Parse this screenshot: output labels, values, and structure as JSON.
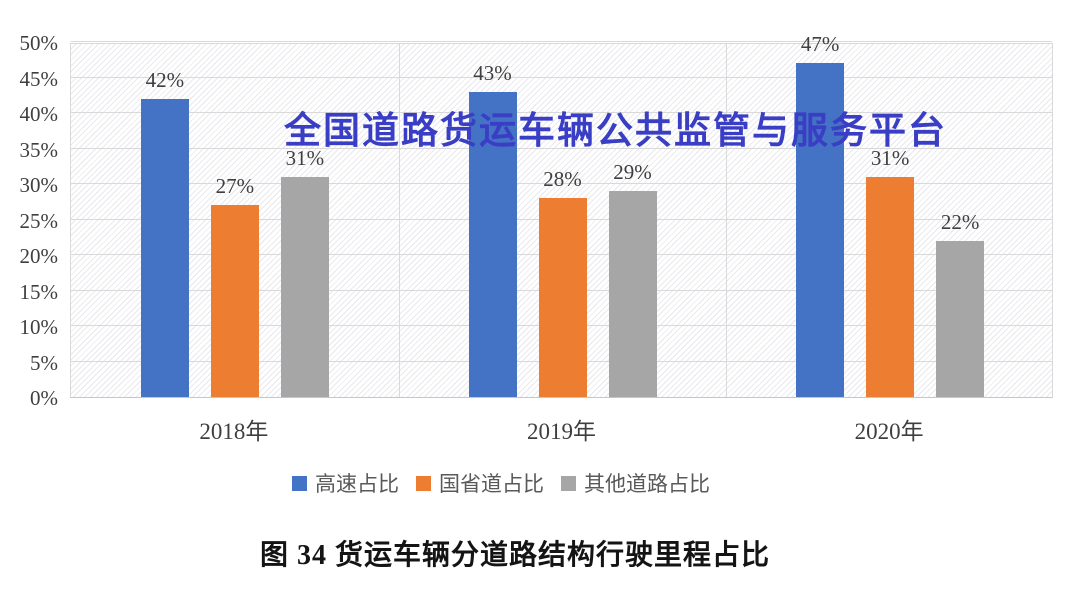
{
  "watermark": {
    "text": "全国道路货运车辆公共监管与服务平台",
    "color": "#3a3ec4"
  },
  "caption": {
    "text": "图 34 货运车辆分道路结构行驶里程占比"
  },
  "chart_data": {
    "type": "bar",
    "title": "",
    "xlabel": "",
    "ylabel": "",
    "categories": [
      "2018年",
      "2019年",
      "2020年"
    ],
    "series": [
      {
        "name": "高速占比",
        "color": "#4472c4",
        "values": [
          42,
          43,
          47
        ]
      },
      {
        "name": "国省道占比",
        "color": "#ed7d31",
        "values": [
          27,
          28,
          31
        ]
      },
      {
        "name": "其他道路占比",
        "color": "#a6a6a6",
        "values": [
          31,
          29,
          22
        ]
      }
    ],
    "data_label_suffix": "%",
    "ylim": [
      0,
      50
    ],
    "ytick_step": 5,
    "yticks": [
      "0%",
      "5%",
      "10%",
      "15%",
      "20%",
      "25%",
      "30%",
      "35%",
      "40%",
      "45%",
      "50%"
    ],
    "grid": true,
    "legend_position": "bottom",
    "plot_background": "light-diagonal-hatch",
    "colors": {
      "gridline": "#d9d9d9",
      "hatch_line": "#e9e9ee",
      "axis_text": "#3f3f3f",
      "legend_text": "#595959"
    }
  }
}
